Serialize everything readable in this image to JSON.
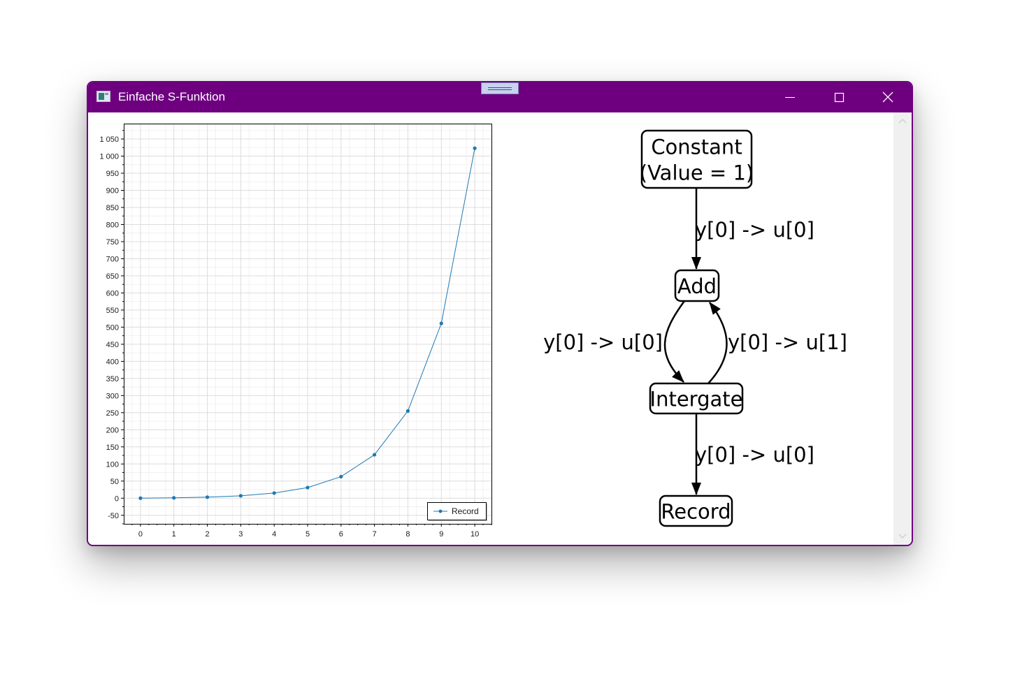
{
  "window": {
    "title": "Einfache S-Funktion",
    "accent_color": "#6e0080",
    "app_icon": "window-app-icon",
    "controls": {
      "minimize_icon": "minimize-icon",
      "maximize_icon": "maximize-icon",
      "close_icon": "close-icon"
    }
  },
  "chart_data": {
    "type": "line",
    "title": "",
    "xlabel": "",
    "ylabel": "",
    "x_ticks": [
      0,
      1,
      2,
      3,
      4,
      5,
      6,
      7,
      8,
      9,
      10
    ],
    "y_ticks": [
      {
        "value": -50,
        "label": "-50"
      },
      {
        "value": 0,
        "label": "0"
      },
      {
        "value": 50,
        "label": "50"
      },
      {
        "value": 100,
        "label": "100"
      },
      {
        "value": 150,
        "label": "150"
      },
      {
        "value": 200,
        "label": "200"
      },
      {
        "value": 250,
        "label": "250"
      },
      {
        "value": 300,
        "label": "300"
      },
      {
        "value": 350,
        "label": "350"
      },
      {
        "value": 400,
        "label": "400"
      },
      {
        "value": 450,
        "label": "450"
      },
      {
        "value": 500,
        "label": "500"
      },
      {
        "value": 550,
        "label": "550"
      },
      {
        "value": 600,
        "label": "600"
      },
      {
        "value": 650,
        "label": "650"
      },
      {
        "value": 700,
        "label": "700"
      },
      {
        "value": 750,
        "label": "750"
      },
      {
        "value": 800,
        "label": "800"
      },
      {
        "value": 850,
        "label": "850"
      },
      {
        "value": 900,
        "label": "900"
      },
      {
        "value": 950,
        "label": "950"
      },
      {
        "value": 1000,
        "label": "1 000"
      },
      {
        "value": 1050,
        "label": "1 050"
      }
    ],
    "xlim": [
      -0.5,
      10.5
    ],
    "ylim": [
      -75,
      1095
    ],
    "grid": true,
    "legend_position": "bottom-right",
    "series": [
      {
        "name": "Record",
        "color": "#1f77b4",
        "x": [
          0,
          1,
          2,
          3,
          4,
          5,
          6,
          7,
          8,
          9,
          10
        ],
        "y": [
          0,
          1,
          3,
          7,
          15,
          31,
          63,
          127,
          255,
          511,
          1023
        ]
      }
    ]
  },
  "diagram": {
    "nodes": [
      {
        "id": "constant",
        "lines": [
          "Constant",
          "(Value = 1)"
        ]
      },
      {
        "id": "add",
        "lines": [
          "Add"
        ]
      },
      {
        "id": "integrate",
        "lines": [
          "Intergate"
        ]
      },
      {
        "id": "record",
        "lines": [
          "Record"
        ]
      }
    ],
    "edges": [
      {
        "from": "constant",
        "to": "add",
        "label": "y[0] -> u[0]"
      },
      {
        "from": "add",
        "to": "integrate",
        "label": "y[0] -> u[0]"
      },
      {
        "from": "integrate",
        "to": "add",
        "label": "y[0] -> u[1]"
      },
      {
        "from": "integrate",
        "to": "record",
        "label": "y[0] -> u[0]"
      }
    ]
  },
  "scrollbar": {
    "up_icon": "chevron-up-icon",
    "down_icon": "chevron-down-icon"
  }
}
